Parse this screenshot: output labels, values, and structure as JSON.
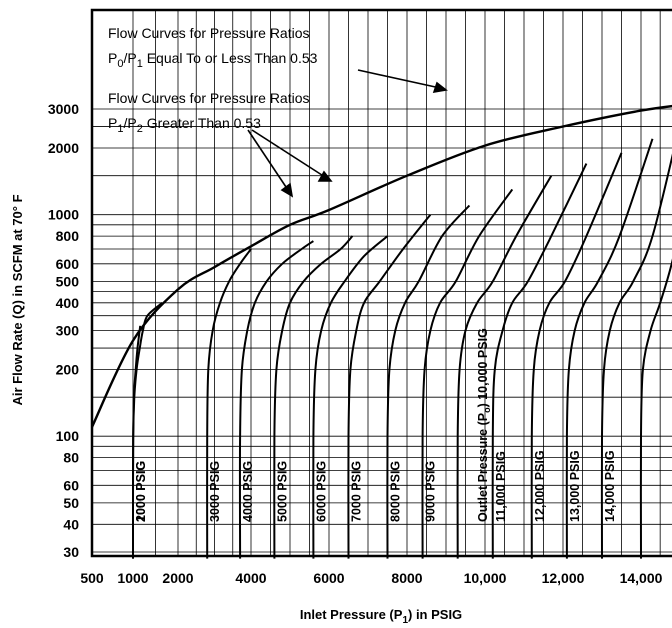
{
  "chart_data": {
    "type": "line",
    "xlabel": "Inlet Pressure (P",
    "xlabel_sub": "1",
    "xlabel_tail": ") in PSIG",
    "ylabel": "Air Flow Rate (Q) in SCFM at 70° F",
    "x_ticks": [
      500,
      1000,
      2000,
      4000,
      6000,
      8000,
      10000,
      12000,
      14000
    ],
    "x_tick_labels": [
      "500",
      "1000",
      "2000",
      "4000",
      "6000",
      "8000",
      "10,000",
      "12,000",
      "14,000"
    ],
    "y_scale": "log",
    "y_ticks": [
      30,
      40,
      50,
      60,
      80,
      100,
      200,
      300,
      400,
      500,
      600,
      800,
      1000,
      2000,
      3000
    ],
    "y_tick_labels": [
      "30",
      "40",
      "50",
      "60",
      "80",
      "100",
      "200",
      "300",
      "400",
      "500",
      "600",
      "800",
      "1000",
      "2000",
      "3000"
    ],
    "xlim": [
      500,
      15200
    ],
    "ylim": [
      25,
      3500
    ],
    "grid": true,
    "annotations": {
      "a1_line1": "Flow Curves for Pressure Ratios",
      "a1_line2_P0": "P",
      "a1_line2_sub0": "0",
      "a1_line2_slash": "/P",
      "a1_line2_sub1": "1",
      "a1_line2_rest": " Equal To or Less Than 0.53",
      "a2_line1": "Flow Curves for Pressure Ratios",
      "a2_line2_P1": "P",
      "a2_line2_sub1": "1",
      "a2_line2_slash": "/P",
      "a2_line2_sub2": "2",
      "a2_line2_rest": " Greater Than 0.53"
    },
    "choked_line": {
      "x": [
        500,
        1000,
        2000,
        3000,
        4000,
        5000,
        6000,
        8000,
        10000,
        12000,
        14000,
        15200
      ],
      "y": [
        110,
        270,
        460,
        580,
        720,
        900,
        1050,
        1500,
        2050,
        2500,
        2950,
        3150
      ]
    },
    "series": [
      {
        "label": "1000 PSIG",
        "outlet": 1000,
        "x": [
          1000,
          1000,
          1005,
          1020,
          1060,
          1100,
          1160
        ],
        "y": [
          28,
          50,
          100,
          150,
          200,
          250,
          315
        ]
      },
      {
        "label": "2000 PSIG",
        "outlet": 2000,
        "x": [
          1000,
          1000,
          1005,
          1030,
          1080,
          1150,
          1220,
          1320,
          1650
        ],
        "y": [
          28,
          50,
          100,
          150,
          200,
          250,
          300,
          350,
          400
        ]
      },
      {
        "label": "3000 PSIG",
        "outlet": 3000,
        "x": [
          2800,
          2800,
          2830,
          2950,
          3150,
          3400,
          3700,
          4000
        ],
        "y": [
          28,
          100,
          200,
          300,
          400,
          500,
          600,
          700
        ]
      },
      {
        "label": "4000 PSIG",
        "outlet": 4000,
        "x": [
          3700,
          3700,
          3750,
          3900,
          4100,
          4400,
          4800,
          5300,
          5600
        ],
        "y": [
          28,
          100,
          200,
          300,
          400,
          500,
          600,
          700,
          760
        ]
      },
      {
        "label": "5000 PSIG",
        "outlet": 5000,
        "x": [
          4600,
          4600,
          4650,
          4800,
          5000,
          5350,
          5800,
          6300,
          6600
        ],
        "y": [
          28,
          100,
          200,
          300,
          400,
          500,
          600,
          700,
          800
        ]
      },
      {
        "label": "6000 PSIG",
        "outlet": 6000,
        "x": [
          5600,
          5600,
          5650,
          5800,
          6050,
          6400,
          6900,
          7500
        ],
        "y": [
          28,
          100,
          200,
          300,
          400,
          500,
          650,
          800
        ]
      },
      {
        "label": "7000 PSIG",
        "outlet": 7000,
        "x": [
          6500,
          6500,
          6550,
          6700,
          6900,
          7300,
          7900,
          8600
        ],
        "y": [
          28,
          100,
          200,
          300,
          400,
          500,
          700,
          1000
        ]
      },
      {
        "label": "8000 PSIG",
        "outlet": 8000,
        "x": [
          7500,
          7500,
          7550,
          7700,
          7950,
          8300,
          8900,
          9600
        ],
        "y": [
          28,
          100,
          200,
          300,
          400,
          500,
          800,
          1100
        ]
      },
      {
        "label": "9000 PSIG",
        "outlet": 9000,
        "x": [
          8400,
          8400,
          8450,
          8600,
          8850,
          9250,
          9850,
          10700
        ],
        "y": [
          28,
          100,
          200,
          300,
          400,
          500,
          800,
          1300
        ]
      },
      {
        "label": "10,000 PSIG",
        "outlet": 10000,
        "x": [
          9300,
          9300,
          9350,
          9500,
          9800,
          10200,
          10800,
          11700
        ],
        "y": [
          28,
          100,
          200,
          300,
          400,
          500,
          800,
          1500
        ]
      },
      {
        "label": "11,000 PSIG",
        "outlet": 11000,
        "x": [
          10200,
          10200,
          10250,
          10450,
          10700,
          11100,
          11700,
          12600
        ],
        "y": [
          28,
          100,
          200,
          300,
          400,
          500,
          800,
          1700
        ]
      },
      {
        "label": "12,000 PSIG",
        "outlet": 12000,
        "x": [
          11200,
          11200,
          11250,
          11400,
          11650,
          12050,
          12600,
          13500
        ],
        "y": [
          28,
          100,
          200,
          300,
          400,
          500,
          800,
          1900
        ]
      },
      {
        "label": "13,000 PSIG",
        "outlet": 13000,
        "x": [
          12100,
          12100,
          12150,
          12300,
          12550,
          12900,
          13450,
          14300
        ],
        "y": [
          28,
          100,
          200,
          300,
          400,
          500,
          800,
          2200
        ]
      },
      {
        "label": "14,000 PSIG",
        "outlet": 14000,
        "x": [
          13000,
          13000,
          13050,
          13200,
          13450,
          13800,
          14300,
          15000
        ],
        "y": [
          28,
          100,
          200,
          300,
          400,
          500,
          800,
          2500
        ]
      },
      {
        "label": "",
        "outlet": 15000,
        "x": [
          14000,
          14000,
          14050,
          14250,
          14500,
          14800,
          15200
        ],
        "y": [
          28,
          100,
          200,
          300,
          400,
          600,
          1200
        ]
      }
    ],
    "outlet_caption": "Outlet Pressure (P",
    "outlet_caption_sub": "o",
    "outlet_caption_tail": ") 10,000 PSIG"
  }
}
